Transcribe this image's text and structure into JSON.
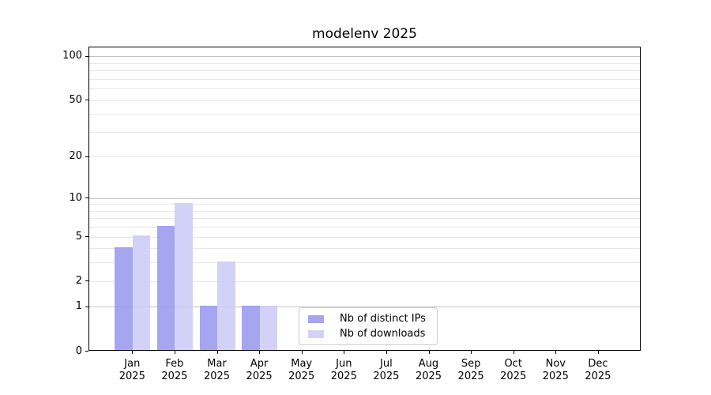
{
  "title": "modelenv 2025",
  "chart_data": {
    "type": "bar",
    "title": "modelenv 2025",
    "categories": [
      "Jan 2025",
      "Feb 2025",
      "Mar 2025",
      "Apr 2025",
      "May 2025",
      "Jun 2025",
      "Jul 2025",
      "Aug 2025",
      "Sep 2025",
      "Oct 2025",
      "Nov 2025",
      "Dec 2025"
    ],
    "series": [
      {
        "name": "Nb of distinct IPs",
        "color": "#9898ee",
        "values": [
          4,
          6,
          1,
          1,
          0,
          0,
          0,
          0,
          0,
          0,
          0,
          0
        ]
      },
      {
        "name": "Nb of downloads",
        "color": "#ccccf8",
        "values": [
          5,
          9,
          3,
          1,
          0,
          0,
          0,
          0,
          0,
          0,
          0,
          0
        ]
      }
    ],
    "bar_opacity": 0.88,
    "xlabel": "",
    "ylabel": "",
    "yscale": "log1p",
    "ylim": [
      0,
      116
    ],
    "yticks": [
      0,
      1,
      2,
      5,
      10,
      20,
      50,
      100
    ],
    "minor_gridlines": [
      2,
      3,
      4,
      5,
      6,
      7,
      8,
      9,
      20,
      30,
      40,
      50,
      60,
      70,
      80,
      90
    ],
    "major_gridlines": [
      1,
      10,
      100
    ],
    "grid": true,
    "legend_position": "lower center"
  }
}
